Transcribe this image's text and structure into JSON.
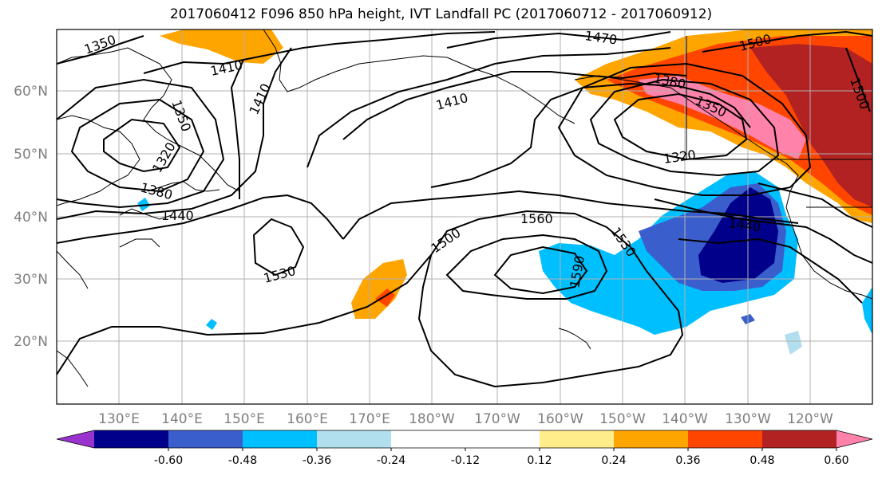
{
  "title": "2017060412 F096 850 hPa height, IVT Landfall PC (2017060712 - 2017060912)",
  "lat_labels": [
    "60°N",
    "50°N",
    "40°N",
    "30°N",
    "20°N"
  ],
  "lon_labels": [
    "130°E",
    "140°E",
    "150°E",
    "160°E",
    "170°E",
    "180°W",
    "170°W",
    "160°W",
    "150°W",
    "140°W",
    "130°W",
    "120°W"
  ],
  "colorbar": {
    "colors": [
      "#9a32cd",
      "#00008b",
      "#3a5fcd",
      "#00bfff",
      "#b2dfee",
      "#ffffff",
      "#ffffff",
      "#ffec8b",
      "#ffa500",
      "#ff4500",
      "#b22222",
      "#ff82ab"
    ],
    "tick_labels": [
      "-0.60",
      "-0.48",
      "-0.36",
      "-0.24",
      "-0.12",
      "0.12",
      "0.24",
      "0.36",
      "0.48",
      "0.60"
    ]
  },
  "contour_labels": [
    "1350",
    "1410",
    "1470",
    "1500",
    "1380",
    "1350",
    "1410",
    "1320",
    "1380",
    "1440",
    "1560",
    "1500",
    "1530",
    "1590",
    "1530",
    "1440",
    "1320",
    "1350",
    "1410",
    "1500"
  ],
  "colors": {
    "grid": "#b0b0b0",
    "axis_label": "#7f7f7f",
    "contour": "#000000",
    "land": "#000000"
  }
}
